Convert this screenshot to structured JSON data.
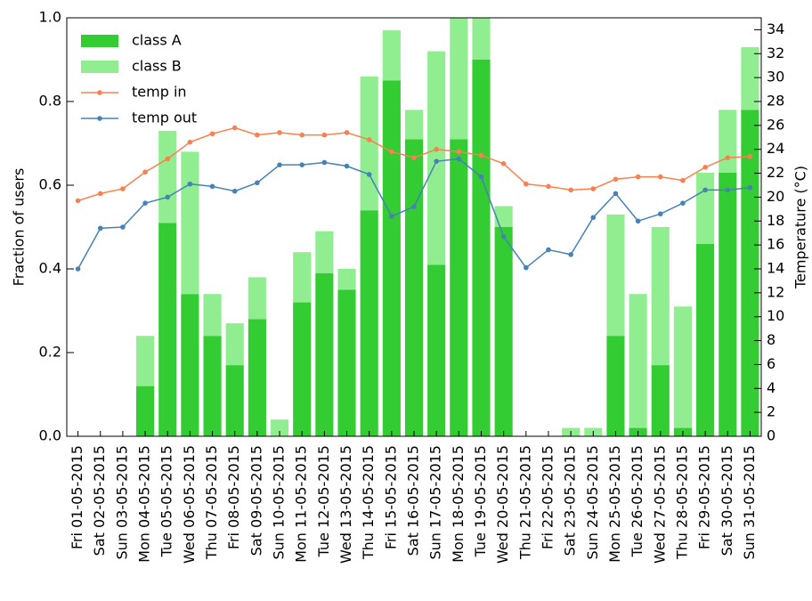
{
  "chart_data": {
    "type": "bar_line",
    "ylabel": "Fraction of users",
    "y2label": "Temperature (°C)",
    "categories": [
      "Fri 01-05-2015",
      "Sat 02-05-2015",
      "Sun 03-05-2015",
      "Mon 04-05-2015",
      "Tue 05-05-2015",
      "Wed 06-05-2015",
      "Thu 07-05-2015",
      "Fri 08-05-2015",
      "Sat 09-05-2015",
      "Sun 10-05-2015",
      "Mon 11-05-2015",
      "Tue 12-05-2015",
      "Wed 13-05-2015",
      "Thu 14-05-2015",
      "Fri 15-05-2015",
      "Sat 16-05-2015",
      "Sun 17-05-2015",
      "Mon 18-05-2015",
      "Tue 19-05-2015",
      "Wed 20-05-2015",
      "Thu 21-05-2015",
      "Fri 22-05-2015",
      "Sat 23-05-2015",
      "Sun 24-05-2015",
      "Mon 25-05-2015",
      "Tue 26-05-2015",
      "Wed 27-05-2015",
      "Thu 28-05-2015",
      "Fri 29-05-2015",
      "Sat 30-05-2015",
      "Sun 31-05-2015"
    ],
    "series": [
      {
        "name": "class A",
        "kind": "bar",
        "color": "#33cc33",
        "values": [
          0,
          0,
          0,
          0.12,
          0.51,
          0.34,
          0.24,
          0.17,
          0.28,
          0,
          0.32,
          0.39,
          0.35,
          0.54,
          0.85,
          0.71,
          0.41,
          0.71,
          0.9,
          0.5,
          0,
          0,
          0,
          0,
          0.24,
          0.02,
          0.17,
          0.02,
          0.46,
          0.63,
          0.78
        ]
      },
      {
        "name": "class B",
        "kind": "bar",
        "color": "#90ee90",
        "values": [
          0,
          0,
          0,
          0.12,
          0.22,
          0.34,
          0.1,
          0.1,
          0.1,
          0.04,
          0.12,
          0.1,
          0.05,
          0.32,
          0.12,
          0.07,
          0.51,
          0.29,
          0.1,
          0.05,
          0,
          0,
          0.02,
          0.02,
          0.29,
          0.32,
          0.33,
          0.29,
          0.17,
          0.15,
          0.15
        ]
      },
      {
        "name": "temp in",
        "kind": "line",
        "axis": "y2",
        "color": "#fa8050",
        "values": [
          19.7,
          20.3,
          20.7,
          22.1,
          23.2,
          24.6,
          25.3,
          25.8,
          25.2,
          25.4,
          25.2,
          25.2,
          25.4,
          24.8,
          23.8,
          23.3,
          24.0,
          23.8,
          23.5,
          22.8,
          21.1,
          20.9,
          20.6,
          20.7,
          21.5,
          21.7,
          21.7,
          21.4,
          22.5,
          23.3,
          23.4
        ]
      },
      {
        "name": "temp out",
        "kind": "line",
        "axis": "y2",
        "color": "#4682b4",
        "values": [
          14.0,
          17.4,
          17.5,
          19.5,
          20.0,
          21.1,
          20.9,
          20.5,
          21.2,
          22.7,
          22.7,
          22.9,
          22.6,
          21.9,
          18.4,
          19.2,
          23.0,
          23.2,
          21.7,
          16.7,
          14.1,
          15.6,
          15.2,
          18.3,
          20.3,
          18.0,
          18.6,
          19.5,
          20.6,
          20.6,
          20.8
        ]
      }
    ],
    "ylim": [
      0,
      1
    ],
    "yticks": [
      {
        "value": 0,
        "label": "0.0"
      },
      0.2,
      0.4,
      0.6,
      0.8,
      {
        "value": 1,
        "label": "1.0"
      }
    ],
    "y2lim": [
      0,
      35
    ],
    "y2ticks": [
      0,
      2,
      4,
      6,
      8,
      10,
      12,
      14,
      16,
      18,
      20,
      22,
      24,
      26,
      28,
      30,
      32,
      34
    ],
    "legend": "upper left"
  }
}
